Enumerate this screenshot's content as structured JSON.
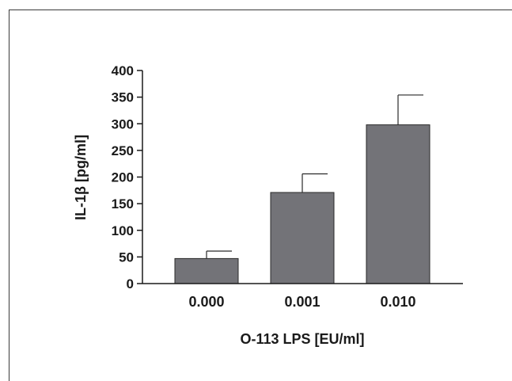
{
  "chart_data": {
    "type": "bar",
    "categories": [
      "0.000",
      "0.001",
      "0.010"
    ],
    "values": [
      47,
      171,
      298
    ],
    "error_upper": [
      61,
      206,
      354
    ],
    "title": "",
    "xlabel": "O-113 LPS [EU/ml]",
    "ylabel": "IL-1β [pg/ml]",
    "ylim": [
      0,
      400
    ],
    "yticks": [
      0,
      50,
      100,
      150,
      200,
      250,
      300,
      350,
      400
    ],
    "bar_color": "#737378",
    "axis_color": "#1a1a1a",
    "grid": false,
    "legend": "none"
  }
}
